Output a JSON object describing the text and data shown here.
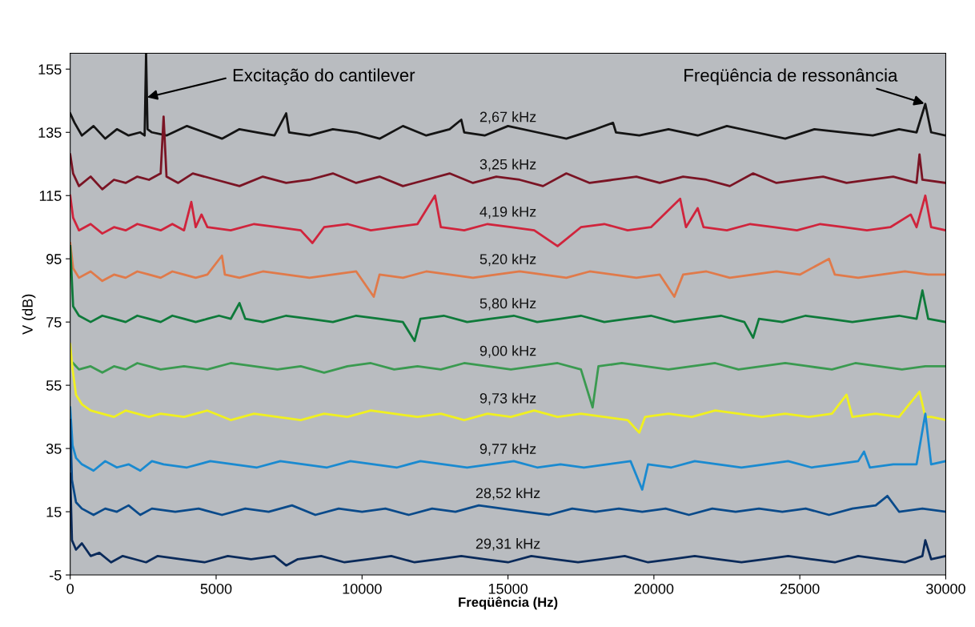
{
  "chart_data": {
    "type": "line",
    "xlabel": "Freqüência (Hz)",
    "ylabel": "V (dB)",
    "xlim": [
      0,
      30000
    ],
    "xticks": [
      0,
      5000,
      10000,
      15000,
      20000,
      25000,
      30000
    ],
    "ylim": [
      -5,
      160
    ],
    "yticks": [
      -5,
      15,
      35,
      55,
      75,
      95,
      115,
      135,
      155
    ],
    "grid": false,
    "legend": false,
    "marker": "none",
    "line_style": "solid",
    "annotations": [
      {
        "text": "Excitação do cantilever",
        "x": 2600,
        "y": 146
      },
      {
        "text": "Freqüência de ressonância",
        "x": 29300,
        "y": 144
      }
    ],
    "series": [
      {
        "name": "2,67 kHz",
        "color": "#141414",
        "x": [
          0,
          150,
          400,
          800,
          1200,
          1600,
          2000,
          2400,
          2550,
          2600,
          2650,
          2800,
          3300,
          4000,
          4600,
          5200,
          5800,
          6400,
          7000,
          7400,
          7500,
          8200,
          9000,
          9800,
          10600,
          11400,
          12200,
          13000,
          13400,
          13500,
          14200,
          15000,
          16000,
          17000,
          18000,
          18600,
          18700,
          19500,
          20500,
          21500,
          22500,
          23500,
          24500,
          25500,
          26500,
          27500,
          28400,
          29000,
          29300,
          29500,
          30000
        ],
        "values": [
          141,
          138,
          134,
          137,
          133,
          136,
          134,
          135,
          134,
          160,
          136,
          135,
          134,
          137,
          135,
          133,
          136,
          135,
          134,
          141,
          135,
          134,
          136,
          135,
          133,
          137,
          134,
          136,
          139,
          135,
          134,
          137,
          135,
          133,
          136,
          138,
          135,
          134,
          136,
          134,
          137,
          135,
          133,
          136,
          135,
          134,
          136,
          135,
          144,
          135,
          134
        ]
      },
      {
        "name": "3,25 kHz",
        "color": "#7a1424",
        "x": [
          0,
          100,
          300,
          700,
          1100,
          1500,
          1900,
          2300,
          2700,
          3100,
          3200,
          3300,
          3700,
          4200,
          5000,
          5800,
          6600,
          7400,
          8200,
          9000,
          9800,
          10600,
          11400,
          12200,
          13000,
          13800,
          14600,
          15400,
          16200,
          17000,
          17800,
          18600,
          19400,
          20200,
          21000,
          21800,
          22600,
          23400,
          24200,
          25000,
          25800,
          26600,
          27400,
          28200,
          29000,
          29100,
          29200,
          30000
        ],
        "values": [
          128,
          122,
          118,
          121,
          117,
          120,
          119,
          121,
          120,
          122,
          140,
          121,
          119,
          122,
          120,
          118,
          121,
          119,
          120,
          122,
          119,
          121,
          118,
          120,
          122,
          119,
          121,
          120,
          118,
          122,
          119,
          120,
          121,
          119,
          121,
          120,
          118,
          122,
          119,
          120,
          121,
          119,
          120,
          121,
          119,
          128,
          120,
          119
        ]
      },
      {
        "name": "4,19 kHz",
        "color": "#d0243c",
        "x": [
          0,
          100,
          300,
          700,
          1100,
          1500,
          1900,
          2300,
          2700,
          3100,
          3500,
          3900,
          4150,
          4300,
          4500,
          4700,
          5500,
          6300,
          7100,
          7900,
          8300,
          8700,
          9500,
          10300,
          11100,
          11900,
          12500,
          12700,
          13500,
          14300,
          15100,
          15900,
          16700,
          17500,
          18300,
          19100,
          19900,
          20900,
          21100,
          21500,
          21700,
          22500,
          23300,
          24100,
          24900,
          25700,
          26500,
          27300,
          28100,
          28800,
          29000,
          29300,
          29500,
          30000
        ],
        "values": [
          115,
          108,
          104,
          106,
          103,
          105,
          104,
          106,
          105,
          104,
          106,
          104,
          113,
          105,
          109,
          105,
          104,
          106,
          105,
          104,
          100,
          105,
          106,
          104,
          105,
          106,
          115,
          105,
          104,
          106,
          105,
          104,
          99,
          105,
          106,
          104,
          105,
          114,
          105,
          111,
          105,
          104,
          106,
          105,
          104,
          106,
          105,
          104,
          105,
          109,
          105,
          115,
          105,
          104
        ]
      },
      {
        "name": "5,20 kHz",
        "color": "#e07a4a",
        "x": [
          0,
          100,
          300,
          700,
          1100,
          1500,
          1900,
          2300,
          2700,
          3100,
          3500,
          3900,
          4300,
          4700,
          5200,
          5300,
          5800,
          6600,
          7400,
          8200,
          9000,
          9800,
          10400,
          10600,
          11400,
          12200,
          13000,
          13800,
          14600,
          15400,
          16200,
          17000,
          17800,
          18600,
          19400,
          20200,
          20700,
          21000,
          21800,
          22600,
          23400,
          24200,
          25000,
          26000,
          26200,
          27000,
          27800,
          28600,
          29400,
          30000
        ],
        "values": [
          100,
          92,
          89,
          91,
          88,
          90,
          89,
          91,
          90,
          89,
          91,
          90,
          89,
          90,
          96,
          90,
          89,
          91,
          90,
          89,
          90,
          91,
          83,
          90,
          89,
          91,
          90,
          89,
          90,
          91,
          90,
          89,
          91,
          90,
          89,
          90,
          83,
          90,
          91,
          89,
          90,
          91,
          90,
          95,
          90,
          89,
          90,
          91,
          90,
          90
        ]
      },
      {
        "name": "5,80 kHz",
        "color": "#0e7a3a",
        "x": [
          0,
          100,
          300,
          700,
          1100,
          1500,
          1900,
          2300,
          2700,
          3100,
          3500,
          3900,
          4300,
          4700,
          5100,
          5500,
          5800,
          6000,
          6600,
          7400,
          8200,
          9000,
          9800,
          10600,
          11400,
          11800,
          12000,
          12800,
          13600,
          14400,
          15200,
          16000,
          16800,
          17500,
          18300,
          19100,
          19900,
          20700,
          21500,
          22300,
          23100,
          23400,
          23600,
          24400,
          25200,
          26000,
          26800,
          27600,
          28400,
          29000,
          29200,
          29400,
          30000
        ],
        "values": [
          99,
          80,
          77,
          75,
          77,
          76,
          75,
          77,
          76,
          75,
          77,
          76,
          75,
          76,
          77,
          76,
          81,
          76,
          75,
          77,
          76,
          75,
          77,
          76,
          75,
          69,
          76,
          77,
          75,
          76,
          77,
          75,
          76,
          77,
          75,
          76,
          77,
          75,
          76,
          77,
          75,
          70,
          76,
          75,
          77,
          76,
          75,
          76,
          77,
          76,
          85,
          76,
          75
        ]
      },
      {
        "name": "9,00 kHz",
        "color": "#3a9a50",
        "x": [
          100,
          300,
          700,
          1100,
          1500,
          1900,
          2300,
          2700,
          3100,
          3900,
          4700,
          5500,
          6300,
          7100,
          7900,
          8700,
          9500,
          10300,
          11100,
          11900,
          12700,
          13500,
          14300,
          15100,
          15900,
          16700,
          17500,
          17900,
          18100,
          18900,
          19700,
          20500,
          21300,
          22100,
          22900,
          23700,
          24500,
          25300,
          26100,
          26900,
          27700,
          28500,
          29300,
          30000
        ],
        "values": [
          62,
          60,
          61,
          59,
          61,
          60,
          62,
          61,
          60,
          61,
          60,
          62,
          61,
          60,
          61,
          59,
          61,
          62,
          60,
          61,
          60,
          62,
          61,
          60,
          61,
          62,
          60,
          48,
          61,
          62,
          61,
          60,
          61,
          62,
          60,
          61,
          62,
          61,
          60,
          62,
          61,
          60,
          61,
          61
        ]
      },
      {
        "name": "9,73 kHz",
        "color": "#f0f020",
        "x": [
          0,
          80,
          200,
          400,
          700,
          1100,
          1500,
          1900,
          2300,
          2700,
          3100,
          3900,
          4700,
          5500,
          6300,
          7100,
          7900,
          8700,
          9500,
          10300,
          11100,
          11900,
          12700,
          13500,
          14300,
          15100,
          15900,
          16700,
          17500,
          18300,
          19100,
          19500,
          19700,
          20500,
          21300,
          22100,
          22900,
          23700,
          24500,
          25300,
          26100,
          26600,
          26800,
          27600,
          28400,
          29100,
          29300,
          29500,
          30000
        ],
        "values": [
          68,
          60,
          52,
          49,
          47,
          46,
          45,
          47,
          46,
          45,
          46,
          45,
          47,
          44,
          46,
          45,
          44,
          46,
          45,
          47,
          46,
          45,
          46,
          44,
          46,
          45,
          47,
          45,
          46,
          45,
          44,
          40,
          45,
          46,
          45,
          47,
          46,
          45,
          46,
          45,
          46,
          52,
          45,
          46,
          45,
          53,
          45,
          45,
          44
        ]
      },
      {
        "name": "9,77 kHz",
        "color": "#1a8ad0",
        "x": [
          0,
          80,
          200,
          400,
          800,
          1200,
          1600,
          2000,
          2400,
          2800,
          3200,
          4000,
          4800,
          5600,
          6400,
          7200,
          8000,
          8800,
          9600,
          10400,
          11200,
          12000,
          12800,
          13600,
          14400,
          15200,
          16000,
          16800,
          17600,
          18400,
          19200,
          19600,
          19800,
          20600,
          21400,
          22200,
          23000,
          23800,
          24600,
          25400,
          26200,
          27000,
          27200,
          27400,
          28200,
          29000,
          29300,
          29500,
          30000
        ],
        "values": [
          48,
          36,
          32,
          30,
          28,
          31,
          29,
          30,
          28,
          31,
          30,
          29,
          31,
          30,
          29,
          31,
          30,
          29,
          31,
          30,
          29,
          31,
          30,
          29,
          30,
          31,
          29,
          30,
          29,
          30,
          31,
          22,
          30,
          29,
          31,
          30,
          29,
          30,
          31,
          29,
          30,
          31,
          34,
          29,
          30,
          30,
          46,
          30,
          31
        ]
      },
      {
        "name": "28,52 kHz",
        "color": "#0a4a8a",
        "x": [
          0,
          60,
          200,
          400,
          800,
          1200,
          1600,
          2000,
          2400,
          2800,
          3600,
          4400,
          5200,
          6000,
          6800,
          7600,
          8400,
          9200,
          10000,
          10800,
          11600,
          12400,
          13200,
          14000,
          14800,
          15600,
          16400,
          17200,
          18000,
          18800,
          19600,
          20400,
          21200,
          22000,
          22800,
          23600,
          24400,
          25200,
          26000,
          26800,
          27600,
          28000,
          28400,
          29200,
          30000
        ],
        "values": [
          44,
          25,
          18,
          16,
          14,
          16,
          15,
          17,
          14,
          16,
          15,
          16,
          14,
          16,
          15,
          17,
          14,
          16,
          15,
          16,
          14,
          16,
          15,
          17,
          16,
          15,
          14,
          16,
          15,
          16,
          15,
          16,
          14,
          16,
          15,
          16,
          15,
          16,
          14,
          16,
          17,
          20,
          15,
          16,
          15
        ]
      },
      {
        "name": "29,31 kHz",
        "color": "#0a2a5a",
        "x": [
          0,
          60,
          200,
          400,
          700,
          1000,
          1400,
          1800,
          2200,
          2600,
          3000,
          3800,
          4600,
          5400,
          6200,
          7000,
          7400,
          7800,
          8600,
          9400,
          10200,
          11000,
          11800,
          12600,
          13400,
          14200,
          15000,
          15800,
          16600,
          17400,
          18200,
          19000,
          19800,
          20600,
          21400,
          22200,
          23000,
          23800,
          24600,
          25400,
          26200,
          27000,
          27800,
          28600,
          29200,
          29300,
          29500,
          30000
        ],
        "values": [
          27,
          6,
          3,
          5,
          1,
          2,
          -1,
          1,
          0,
          -1,
          1,
          0,
          -1,
          1,
          0,
          1,
          -2,
          0,
          1,
          -1,
          0,
          1,
          -1,
          0,
          1,
          0,
          -1,
          1,
          0,
          -1,
          0,
          1,
          -1,
          0,
          1,
          0,
          -1,
          0,
          1,
          0,
          -1,
          1,
          0,
          -1,
          1,
          6,
          0,
          1
        ]
      }
    ]
  }
}
